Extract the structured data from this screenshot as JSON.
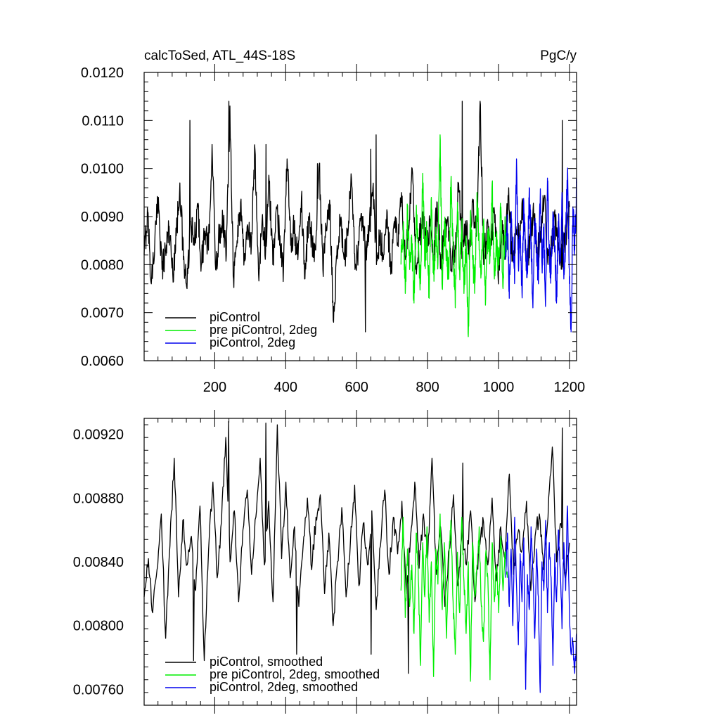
{
  "chart_data": [
    {
      "id": "top",
      "type": "line",
      "title_left": "calcToSed, ATL_44S-18S",
      "title_right": "PgC/y",
      "xlabel": "",
      "ylabel": "",
      "xlim": [
        1,
        1220
      ],
      "ylim": [
        0.006,
        0.012
      ],
      "x_major_ticks": [
        200,
        400,
        600,
        800,
        1000,
        1200
      ],
      "x_tick_labels": [
        "200",
        "400",
        "600",
        "800",
        "1000",
        "1200"
      ],
      "y_major_ticks": [
        0.006,
        0.007,
        0.008,
        0.009,
        0.01,
        0.011,
        0.012
      ],
      "y_tick_labels": [
        "0.0060",
        "0.0070",
        "0.0080",
        "0.0090",
        "0.0100",
        "0.0110",
        "0.0120"
      ],
      "grid": false,
      "legend_position": "bottom-left",
      "series": [
        {
          "name": "piControl",
          "color": "#000000",
          "x_start": 1,
          "x_end": 1200,
          "values": [
            0.0082,
            0.0091,
            0.0076,
            0.0085,
            0.0094,
            0.0079,
            0.0083,
            0.0088,
            0.0078,
            0.0086,
            0.0097,
            0.0081,
            0.0075,
            0.0089,
            0.0084,
            0.0092,
            0.008,
            0.0087,
            0.0083,
            0.0105,
            0.0079,
            0.0086,
            0.009,
            0.0082,
            0.0113,
            0.0077,
            0.0085,
            0.0093,
            0.0081,
            0.0088,
            0.0084,
            0.0104,
            0.0078,
            0.0089,
            0.0083,
            0.0097,
            0.008,
            0.0092,
            0.0086,
            0.0079,
            0.0102,
            0.0084,
            0.0088,
            0.0081,
            0.0094,
            0.0077,
            0.009,
            0.0085,
            0.0083,
            0.0101,
            0.0079,
            0.0087,
            0.0092,
            0.0068,
            0.0084,
            0.0089,
            0.0081,
            0.0086,
            0.0098,
            0.0079,
            0.0084,
            0.009,
            0.0083,
            0.0087,
            0.0096,
            0.008,
            0.0086,
            0.0082,
            0.0091,
            0.0078,
            0.0089,
            0.0084,
            0.0095,
            0.0081,
            0.0087,
            0.01,
            0.0079,
            0.0085,
            0.0091,
            0.0083,
            0.0088,
            0.0082,
            0.0093,
            0.008,
            0.0086,
            0.009,
            0.0079,
            0.0084,
            0.0097,
            0.0082,
            0.0088,
            0.0081,
            0.0093,
            0.0086,
            0.0114,
            0.008,
            0.0089,
            0.0084,
            0.0091,
            0.0078,
            0.0087,
            0.0083,
            0.0096,
            0.0081,
            0.0088,
            0.0085,
            0.0092,
            0.0079,
            0.0086,
            0.009,
            0.0082,
            0.0087,
            0.0094,
            0.008,
            0.0085,
            0.0089,
            0.0083,
            0.0081,
            0.0086,
            0.0092
          ],
          "extra_spikes": [
            [
              130,
              0.011
            ],
            [
              240,
              0.0114
            ],
            [
              345,
              0.0105
            ],
            [
              490,
              0.0101
            ],
            [
              625,
              0.0066
            ],
            [
              640,
              0.0104
            ],
            [
              655,
              0.0107
            ],
            [
              898,
              0.0114
            ],
            [
              1180,
              0.011
            ]
          ]
        },
        {
          "name": "pre piControl, 2deg",
          "color": "#00ee00",
          "x_start": 725,
          "x_end": 1025,
          "values": [
            0.008,
            0.0088,
            0.0074,
            0.0092,
            0.0079,
            0.0085,
            0.0072,
            0.009,
            0.0083,
            0.0076,
            0.0099,
            0.0081,
            0.0087,
            0.0073,
            0.0094,
            0.0078,
            0.0086,
            0.008,
            0.0107,
            0.0075,
            0.0089,
            0.0082,
            0.0077,
            0.0097,
            0.0084,
            0.0071,
            0.0093,
            0.0079,
            0.0088,
            0.0074,
            0.0086,
            0.0065,
            0.0091,
            0.0081,
            0.0076,
            0.0095,
            0.0083,
            0.0078,
            0.0089,
            0.0073,
            0.0087,
            0.0082,
            0.0097,
            0.0077,
            0.0085,
            0.008,
            0.0092,
            0.0075,
            0.0088,
            0.0083
          ]
        },
        {
          "name": "piControl, 2deg",
          "color": "#0000ee",
          "x_start": 1020,
          "x_end": 1220,
          "values": [
            0.0081,
            0.0088,
            0.0073,
            0.009,
            0.0084,
            0.0077,
            0.0102,
            0.008,
            0.0087,
            0.0074,
            0.0093,
            0.0082,
            0.0078,
            0.0096,
            0.0085,
            0.0071,
            0.0089,
            0.0083,
            0.0076,
            0.0094,
            0.008,
            0.0087,
            0.0073,
            0.0098,
            0.0082,
            0.0078,
            0.0091,
            0.0084,
            0.0072,
            0.0089,
            0.0081,
            0.0095,
            0.0077,
            0.0086,
            0.0099,
            0.0079,
            0.0066,
            0.0092,
            0.0083,
            0.0097
          ]
        }
      ],
      "legend": [
        "piControl",
        "pre piControl, 2deg",
        "piControl, 2deg"
      ]
    },
    {
      "id": "bottom",
      "type": "line",
      "xlabel": "",
      "ylabel": "",
      "xlim": [
        1,
        1220
      ],
      "ylim": [
        0.0075,
        0.0093
      ],
      "x_major_ticks": [
        200,
        400,
        600,
        800,
        1000,
        1200
      ],
      "y_major_ticks": [
        0.0076,
        0.008,
        0.0084,
        0.0088,
        0.0092
      ],
      "y_tick_labels": [
        "0.00760",
        "0.00800",
        "0.00840",
        "0.00880",
        "0.00920"
      ],
      "grid": false,
      "legend_position": "bottom-left",
      "series": [
        {
          "name": "piControl, smoothed",
          "color": "#000000",
          "x_start": 1,
          "x_end": 1200,
          "values": [
            0.00818,
            0.00842,
            0.00808,
            0.00835,
            0.0087,
            0.00792,
            0.0085,
            0.00905,
            0.00818,
            0.00866,
            0.00838,
            0.00856,
            0.00822,
            0.00875,
            0.00778,
            0.00848,
            0.0089,
            0.0083,
            0.00865,
            0.00918,
            0.0084,
            0.00872,
            0.00815,
            0.0086,
            0.00885,
            0.00832,
            0.00868,
            0.00905,
            0.00838,
            0.00878,
            0.00815,
            0.00926,
            0.00842,
            0.0089,
            0.0083,
            0.00862,
            0.00812,
            0.0085,
            0.0088,
            0.00835,
            0.00868,
            0.00882,
            0.0082,
            0.00858,
            0.008,
            0.0084,
            0.00874,
            0.00818,
            0.00852,
            0.00888,
            0.00825,
            0.00864,
            0.00838,
            0.00872,
            0.0081,
            0.0085,
            0.00885,
            0.00832,
            0.00868,
            0.00845,
            0.00878,
            0.0082,
            0.00855,
            0.0089,
            0.00836,
            0.0087,
            0.00842,
            0.00905,
            0.00832,
            0.00862,
            0.00812,
            0.00848,
            0.00882,
            0.00825,
            0.00858,
            0.00838,
            0.00872,
            0.00815,
            0.0085,
            0.00865,
            0.00838,
            0.0088,
            0.00828,
            0.00862,
            0.00842,
            0.00895,
            0.00832,
            0.00858,
            0.00848,
            0.00878,
            0.00822,
            0.00856,
            0.0087,
            0.00835,
            0.00868,
            0.00912,
            0.0084,
            0.00864,
            0.0083,
            0.00852
          ],
          "extra_spikes": [
            [
              140,
              0.00778
            ],
            [
              240,
              0.00928
            ],
            [
              345,
              0.00927
            ],
            [
              430,
              0.00782
            ],
            [
              640,
              0.00782
            ],
            [
              745,
              0.0077
            ],
            [
              900,
              0.00902
            ],
            [
              1180,
              0.00924
            ]
          ]
        },
        {
          "name": "pre piControl, 2deg, smoothed",
          "color": "#00ee00",
          "x_start": 725,
          "x_end": 1025,
          "values": [
            0.00822,
            0.00868,
            0.00805,
            0.00848,
            0.00812,
            0.00838,
            0.00795,
            0.00858,
            0.00828,
            0.00775,
            0.00852,
            0.00818,
            0.00862,
            0.00802,
            0.0084,
            0.00768,
            0.00848,
            0.00826,
            0.0087,
            0.0081,
            0.00852,
            0.00792,
            0.00838,
            0.00866,
            0.00815,
            0.00782,
            0.00846,
            0.00808,
            0.00868,
            0.00828,
            0.00795,
            0.0084,
            0.00765,
            0.00852,
            0.00818,
            0.00838,
            0.00862,
            0.00812,
            0.0079,
            0.00845,
            0.0083,
            0.00766,
            0.00852,
            0.00815,
            0.00838,
            0.00808,
            0.00856,
            0.00822,
            0.00845,
            0.0083
          ]
        },
        {
          "name": "piControl, 2deg, smoothed",
          "color": "#0000ee",
          "x_start": 1020,
          "x_end": 1220,
          "values": [
            0.0083,
            0.00858,
            0.00812,
            0.00848,
            0.008,
            0.00868,
            0.00825,
            0.00788,
            0.00845,
            0.00815,
            0.00855,
            0.0076,
            0.00832,
            0.0081,
            0.00862,
            0.00836,
            0.00792,
            0.00848,
            0.00818,
            0.00758,
            0.0084,
            0.00822,
            0.00866,
            0.00808,
            0.00852,
            0.0083,
            0.00775,
            0.00845,
            0.00815,
            0.0086,
            0.00835,
            0.00798,
            0.00852,
            0.00822,
            0.00875,
            0.00812,
            0.00782,
            0.0079,
            0.0077,
            0.00795
          ]
        }
      ],
      "legend": [
        "piControl, smoothed",
        "pre piControl, 2deg, smoothed",
        "piControl, 2deg, smoothed"
      ]
    }
  ]
}
